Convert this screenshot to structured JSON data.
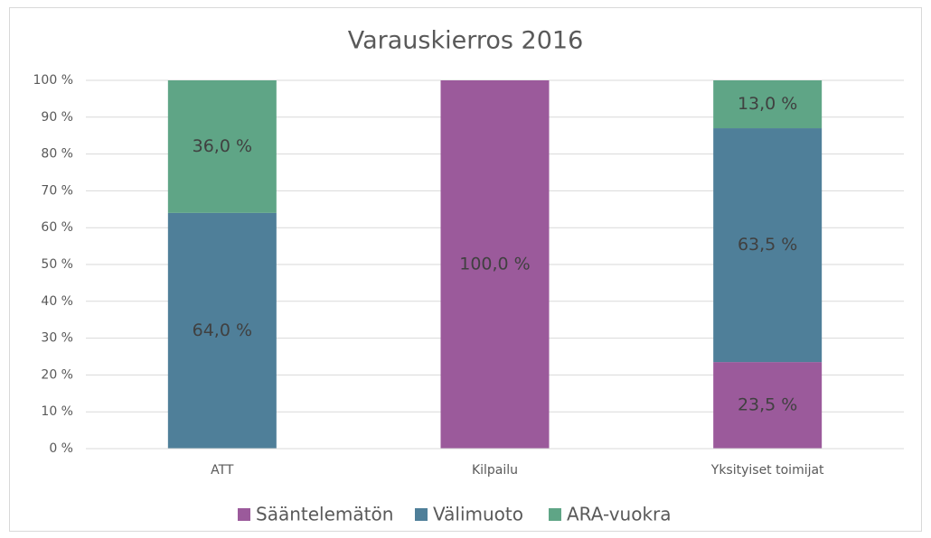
{
  "chart_data": {
    "type": "stacked_bar",
    "title": "Varauskierros 2016",
    "categories": [
      "ATT",
      "Kilpailu",
      "Yksityiset toimijat"
    ],
    "series": [
      {
        "name": "Sääntelemätön",
        "color": "#9b5a9b",
        "values": [
          null,
          100,
          23.5
        ],
        "value_labels": [
          null,
          "100,0 %",
          "23,5 %"
        ]
      },
      {
        "name": "Välimuoto",
        "color": "#4f7f99",
        "values": [
          64,
          null,
          63.5
        ],
        "value_labels": [
          "64,0 %",
          null,
          "63,5 %"
        ]
      },
      {
        "name": "ARA-vuokra",
        "color": "#5fa586",
        "values": [
          36,
          null,
          13
        ],
        "value_labels": [
          "36,0 %",
          null,
          "13,0 %"
        ]
      }
    ],
    "ylim": [
      0,
      100
    ],
    "yticks": [
      {
        "value": 0,
        "label": "0 %"
      },
      {
        "value": 10,
        "label": "10 %"
      },
      {
        "value": 20,
        "label": "20 %"
      },
      {
        "value": 30,
        "label": "30 %"
      },
      {
        "value": 40,
        "label": "40 %"
      },
      {
        "value": 50,
        "label": "50 %"
      },
      {
        "value": 60,
        "label": "60 %"
      },
      {
        "value": 70,
        "label": "70 %"
      },
      {
        "value": 80,
        "label": "80 %"
      },
      {
        "value": 90,
        "label": "90 %"
      },
      {
        "value": 100,
        "label": "100 %"
      }
    ],
    "grid": true,
    "legend": "bottom"
  }
}
